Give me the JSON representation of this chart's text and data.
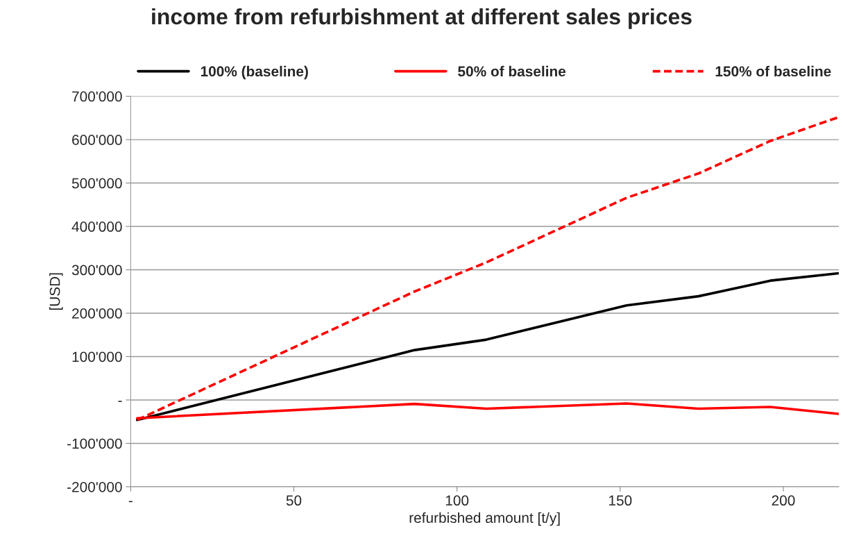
{
  "chart_data": {
    "type": "line",
    "title": "income from refurbishment at different sales prices",
    "xlabel": "refurbished amount [t/y]",
    "ylabel": "[USD]",
    "x": [
      2,
      87,
      109,
      152,
      174,
      196,
      217
    ],
    "series": [
      {
        "name": "100% (baseline)",
        "color": "#000000",
        "line_style": "solid",
        "values": [
          -46000,
          115000,
          139000,
          218000,
          239000,
          275000,
          292000
        ]
      },
      {
        "name": "50% of baseline",
        "color": "#ff0000",
        "line_style": "solid",
        "values": [
          -42000,
          -9000,
          -20000,
          -8000,
          -20000,
          -16000,
          -32000
        ]
      },
      {
        "name": "150% of baseline",
        "color": "#ff0000",
        "line_style": "dashed",
        "values": [
          -46000,
          250000,
          317000,
          466000,
          522000,
          597000,
          652000
        ]
      }
    ],
    "xlim": [
      0,
      217
    ],
    "xticks": [
      {
        "value": 0,
        "label": "-"
      },
      50,
      100,
      150,
      200
    ],
    "ylim": [
      -200000,
      700000
    ],
    "yticks": [
      {
        "value": -200000,
        "label": "-200'000"
      },
      {
        "value": -100000,
        "label": "-100'000"
      },
      {
        "value": 0,
        "label": "-"
      },
      {
        "value": 100000,
        "label": "100'000"
      },
      {
        "value": 200000,
        "label": "200'000"
      },
      {
        "value": 300000,
        "label": "300'000"
      },
      {
        "value": 400000,
        "label": "400'000"
      },
      {
        "value": 500000,
        "label": "500'000"
      },
      {
        "value": 600000,
        "label": "600'000"
      },
      {
        "value": 700000,
        "label": "700'000"
      }
    ],
    "grid": "y",
    "legend": "top",
    "marker": "none"
  }
}
